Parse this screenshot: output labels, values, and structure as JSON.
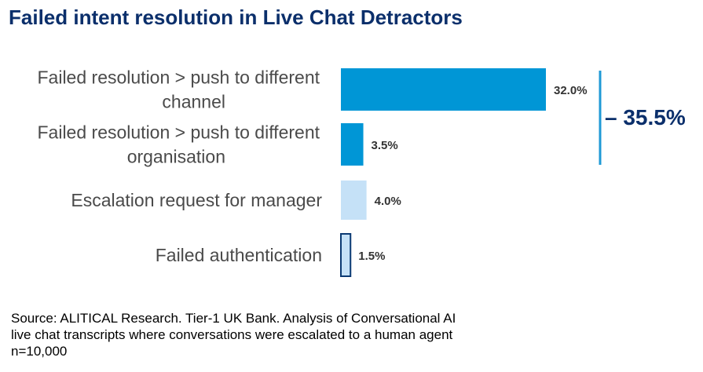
{
  "title": "Failed intent resolution in Live Chat Detractors",
  "colors": {
    "title": "#0b2f6b",
    "bar_dark": "#0096d6",
    "bar_light": "#c5e1f7",
    "bar_outline": "#0b3a73",
    "bracket": "#1f9ad6"
  },
  "chart_data": {
    "type": "bar",
    "orientation": "horizontal",
    "title": "Failed intent resolution in Live Chat Detractors",
    "categories": [
      [
        "Failed resolution > push to different",
        "channel"
      ],
      [
        "Failed resolution > push to different",
        "organisation"
      ],
      [
        "Escalation request for manager"
      ],
      [
        "Failed authentication"
      ]
    ],
    "values": [
      32.0,
      3.5,
      4.0,
      1.5
    ],
    "value_labels": [
      "32.0%",
      "3.5%",
      "4.0%",
      "1.5%"
    ],
    "bar_styles": [
      "dark",
      "dark",
      "light",
      "outlined"
    ],
    "xlim": [
      0,
      32.0
    ],
    "grid": false,
    "group_annotation": {
      "covers_categories": [
        0,
        1
      ],
      "label": "35.5%"
    }
  },
  "source": {
    "lines": [
      "Source: ALITICAL Research. Tier-1 UK Bank. Analysis of Conversational AI",
      "live chat transcripts where conversations were escalated to a human agent",
      "n=10,000"
    ]
  }
}
